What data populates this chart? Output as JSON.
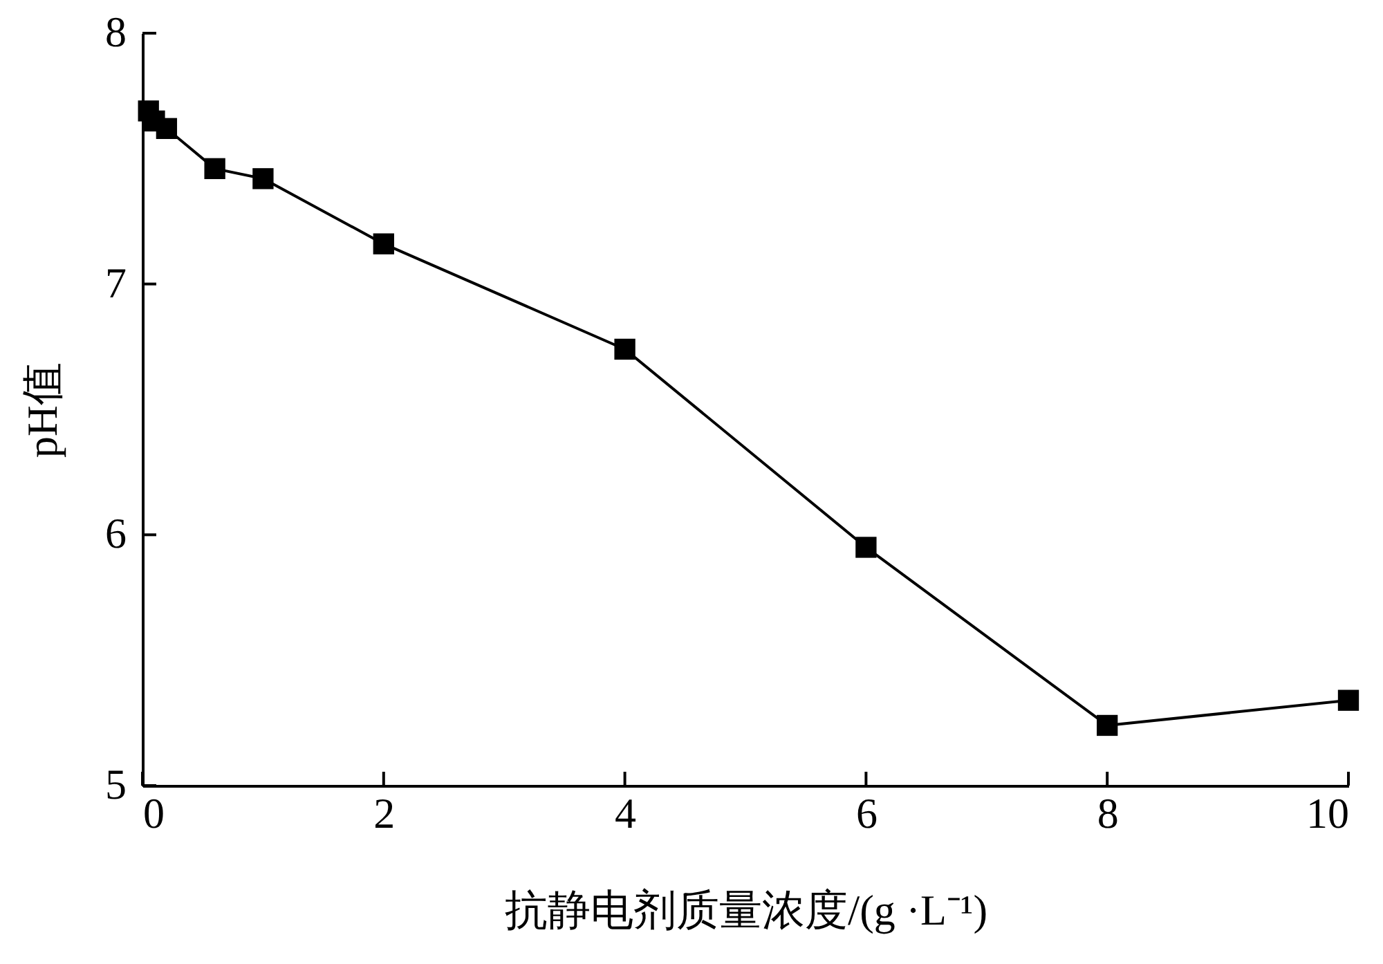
{
  "chart_data": {
    "type": "line",
    "xlabel": "抗静电剂质量浓度/(g ·L⁻¹)",
    "ylabel": "pH值",
    "x": [
      0.05,
      0.1,
      0.2,
      0.6,
      1,
      2,
      4,
      6,
      8,
      10
    ],
    "series": [
      {
        "color": "#000000",
        "values": [
          7.69,
          7.65,
          7.62,
          7.46,
          7.42,
          7.16,
          6.74,
          5.95,
          5.24,
          5.34
        ]
      }
    ],
    "xlim": [
      0,
      10
    ],
    "ylim": [
      5,
      8
    ],
    "xticks": [
      0,
      2,
      4,
      6,
      8,
      10
    ],
    "yticks": [
      5,
      6,
      7,
      8
    ],
    "marker": "square",
    "line_style": "solid",
    "grid": false
  }
}
